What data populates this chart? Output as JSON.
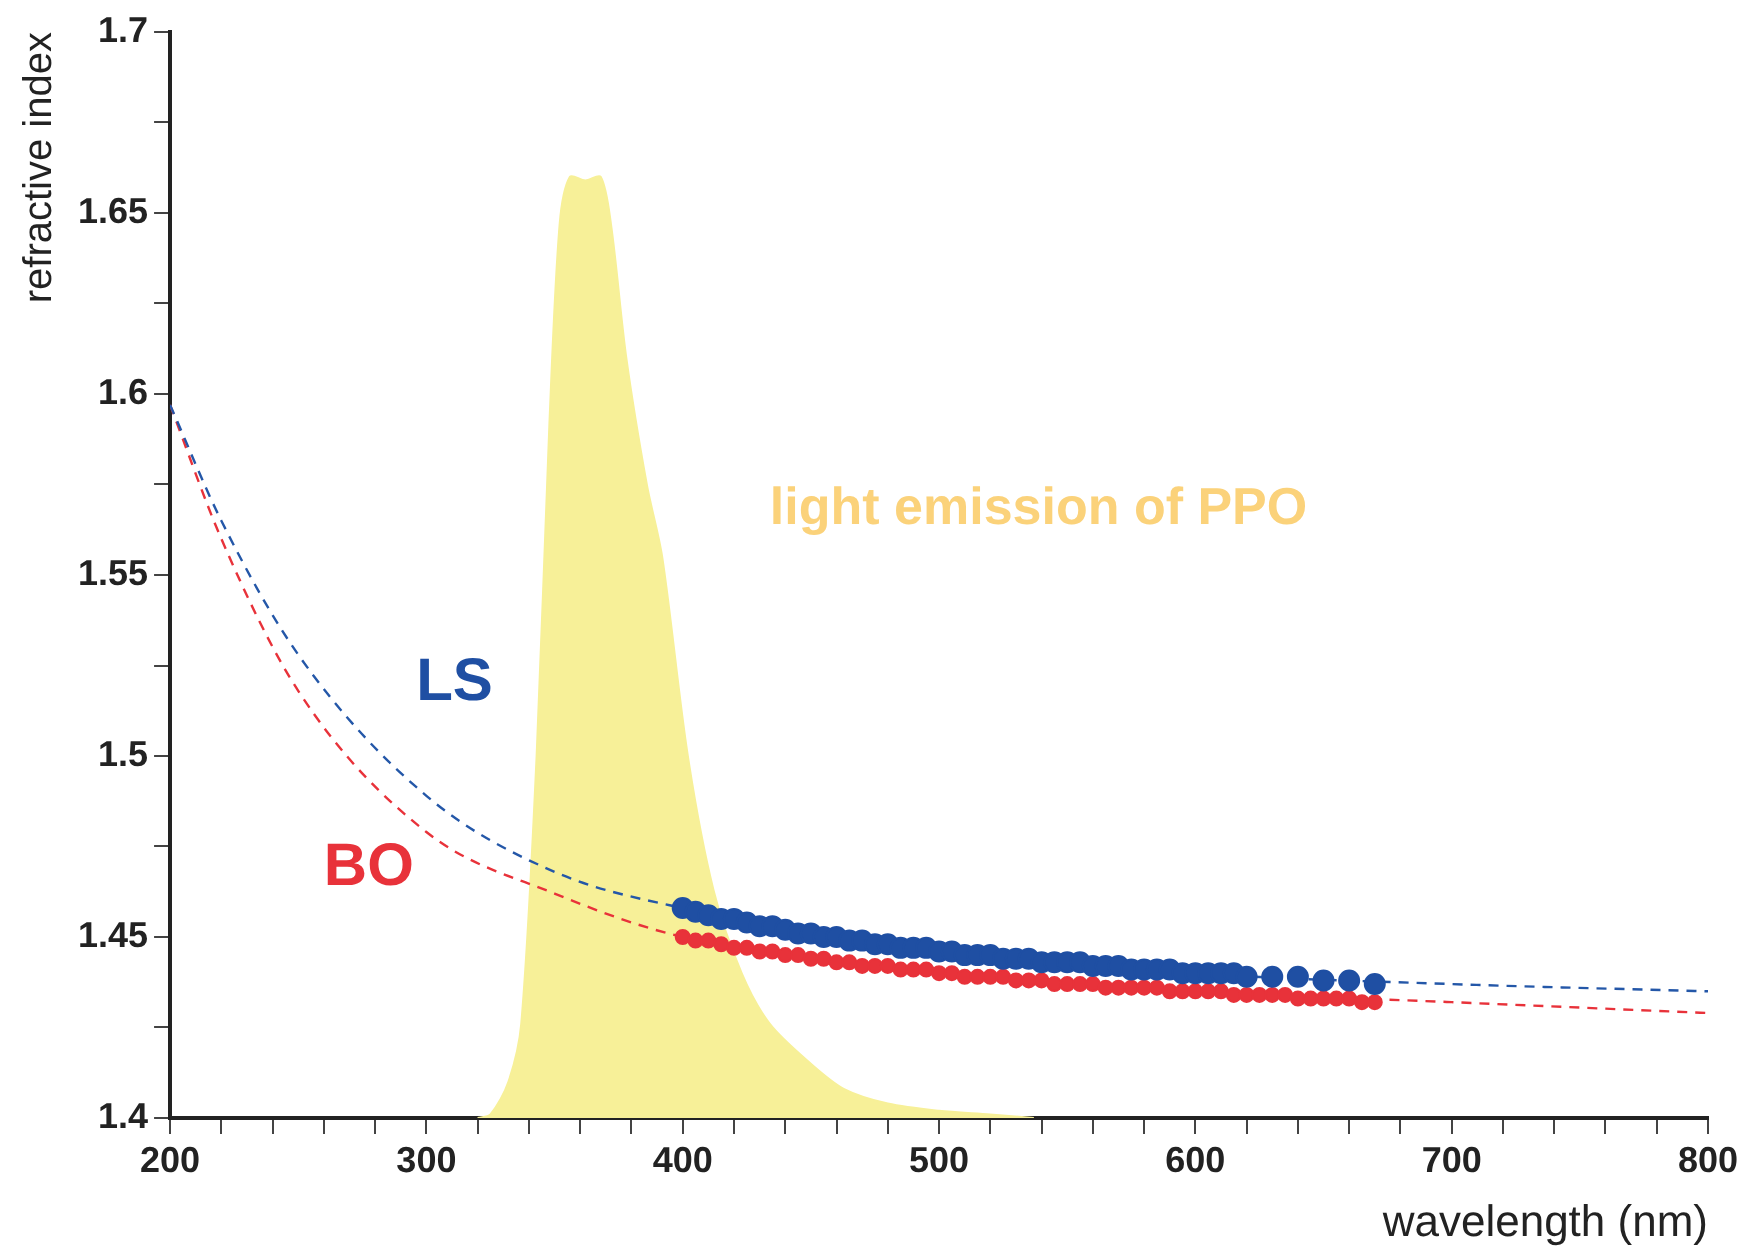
{
  "chart_data": {
    "type": "scatter",
    "xlabel": "wavelength (nm)",
    "ylabel": "refractive index",
    "xlim": [
      200,
      800
    ],
    "ylim": [
      1.4,
      1.7
    ],
    "xticks": [
      200,
      {
        "value": 220,
        "label": null
      },
      {
        "value": 240,
        "label": null
      },
      {
        "value": 260,
        "label": null
      },
      {
        "value": 280,
        "label": null
      },
      300,
      {
        "value": 320,
        "label": null
      },
      {
        "value": 340,
        "label": null
      },
      {
        "value": 360,
        "label": null
      },
      {
        "value": 380,
        "label": null
      },
      400,
      {
        "value": 420,
        "label": null
      },
      {
        "value": 440,
        "label": null
      },
      {
        "value": 460,
        "label": null
      },
      {
        "value": 480,
        "label": null
      },
      500,
      {
        "value": 520,
        "label": null
      },
      {
        "value": 540,
        "label": null
      },
      {
        "value": 560,
        "label": null
      },
      {
        "value": 580,
        "label": null
      },
      600,
      {
        "value": 620,
        "label": null
      },
      {
        "value": 640,
        "label": null
      },
      {
        "value": 660,
        "label": null
      },
      {
        "value": 680,
        "label": null
      },
      700,
      {
        "value": 720,
        "label": null
      },
      {
        "value": 740,
        "label": null
      },
      {
        "value": 760,
        "label": null
      },
      {
        "value": 780,
        "label": null
      },
      800
    ],
    "yticks": [
      1.4,
      {
        "value": 1.425,
        "label": null
      },
      1.45,
      {
        "value": 1.475,
        "label": null
      },
      1.5,
      {
        "value": 1.525,
        "label": null
      },
      1.55,
      {
        "value": 1.575,
        "label": null
      },
      1.6,
      {
        "value": 1.625,
        "label": null
      },
      1.65,
      {
        "value": 1.675,
        "label": null
      },
      1.7
    ],
    "grid": false,
    "legend": false,
    "annotations": [
      "light emission of PPO"
    ],
    "series": [
      {
        "type": "area",
        "color": "#f7f098",
        "x": [
          320,
          325,
          332,
          337,
          343,
          348,
          352,
          356,
          362,
          368,
          372,
          378,
          386,
          392,
          402,
          412,
          423,
          434,
          450,
          463,
          480,
          500,
          520,
          537
        ],
        "values": [
          1.4,
          1.401,
          1.41,
          1.426,
          1.5,
          1.592,
          1.647,
          1.66,
          1.659,
          1.66,
          1.647,
          1.61,
          1.575,
          1.555,
          1.5,
          1.463,
          1.44,
          1.426,
          1.415,
          1.408,
          1.404,
          1.402,
          1.401,
          1.4
        ]
      },
      {
        "type": "line",
        "line_style": "dashed",
        "color": "#2457a8",
        "x": [
          200,
          220,
          250,
          300,
          350,
          400,
          500,
          600,
          700,
          800
        ],
        "values": [
          1.597,
          1.565,
          1.528,
          1.489,
          1.468,
          1.458,
          1.447,
          1.44,
          1.437,
          1.435
        ]
      },
      {
        "type": "line",
        "line_style": "dashed",
        "color": "#e8323a",
        "x": [
          200,
          220,
          250,
          300,
          350,
          400,
          500,
          600,
          700,
          800
        ],
        "values": [
          1.597,
          1.56,
          1.518,
          1.479,
          1.462,
          1.45,
          1.441,
          1.435,
          1.432,
          1.429
        ]
      },
      {
        "name": "LS",
        "color": "#1f4fa3",
        "marker": "circle",
        "x": [
          400,
          405,
          410,
          415,
          420,
          425,
          430,
          435,
          440,
          445,
          450,
          455,
          460,
          465,
          470,
          475,
          480,
          485,
          490,
          495,
          500,
          505,
          510,
          515,
          520,
          525,
          530,
          535,
          540,
          545,
          550,
          555,
          560,
          565,
          570,
          575,
          580,
          585,
          590,
          595,
          600,
          605,
          610,
          615,
          620,
          630,
          640,
          650,
          660,
          670
        ],
        "values": [
          1.458,
          1.457,
          1.456,
          1.455,
          1.455,
          1.454,
          1.453,
          1.453,
          1.452,
          1.451,
          1.451,
          1.45,
          1.45,
          1.449,
          1.449,
          1.448,
          1.448,
          1.447,
          1.447,
          1.447,
          1.446,
          1.446,
          1.445,
          1.445,
          1.445,
          1.444,
          1.444,
          1.444,
          1.443,
          1.443,
          1.443,
          1.443,
          1.442,
          1.442,
          1.442,
          1.441,
          1.441,
          1.441,
          1.441,
          1.44,
          1.44,
          1.44,
          1.44,
          1.44,
          1.439,
          1.439,
          1.439,
          1.438,
          1.438,
          1.437
        ]
      },
      {
        "name": "BO",
        "color": "#e8323a",
        "marker": "circle",
        "x": [
          400,
          405,
          410,
          415,
          420,
          425,
          430,
          435,
          440,
          445,
          450,
          455,
          460,
          465,
          470,
          475,
          480,
          485,
          490,
          495,
          500,
          505,
          510,
          515,
          520,
          525,
          530,
          535,
          540,
          545,
          550,
          555,
          560,
          565,
          570,
          575,
          580,
          585,
          590,
          595,
          600,
          605,
          610,
          615,
          620,
          625,
          630,
          635,
          640,
          645,
          650,
          655,
          660,
          665,
          670
        ],
        "values": [
          1.45,
          1.449,
          1.449,
          1.448,
          1.447,
          1.447,
          1.446,
          1.446,
          1.445,
          1.445,
          1.444,
          1.444,
          1.443,
          1.443,
          1.442,
          1.442,
          1.442,
          1.441,
          1.441,
          1.441,
          1.44,
          1.44,
          1.439,
          1.439,
          1.439,
          1.439,
          1.438,
          1.438,
          1.438,
          1.437,
          1.437,
          1.437,
          1.437,
          1.436,
          1.436,
          1.436,
          1.436,
          1.436,
          1.435,
          1.435,
          1.435,
          1.435,
          1.435,
          1.434,
          1.434,
          1.434,
          1.434,
          1.434,
          1.433,
          1.433,
          1.433,
          1.433,
          1.433,
          1.432,
          1.432
        ]
      }
    ]
  }
}
